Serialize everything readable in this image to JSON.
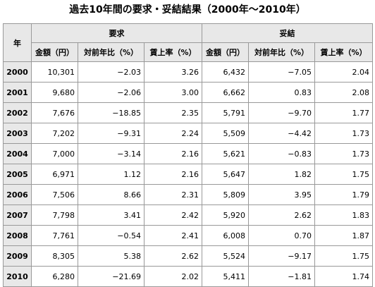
{
  "title": "過去10年間の要求・妥結結果（2000年～2010年）",
  "table": {
    "year_header": "年",
    "groups": [
      "要求",
      "妥結"
    ],
    "columns": [
      "金額（円）",
      "対前年比（%）",
      "賃上率（%）",
      "金額（円）",
      "対前年比（%）",
      "賃上率（%）"
    ],
    "rows": [
      {
        "year": "2000",
        "cells": [
          "10,301",
          "−2.03",
          "3.26",
          "6,432",
          "−7.05",
          "2.04"
        ]
      },
      {
        "year": "2001",
        "cells": [
          "9,680",
          "−2.06",
          "3.00",
          "6,662",
          "0.83",
          "2.08"
        ]
      },
      {
        "year": "2002",
        "cells": [
          "7,676",
          "−18.85",
          "2.35",
          "5,791",
          "−9.70",
          "1.77"
        ]
      },
      {
        "year": "2003",
        "cells": [
          "7,202",
          "−9.31",
          "2.24",
          "5,509",
          "−4.42",
          "1.73"
        ]
      },
      {
        "year": "2004",
        "cells": [
          "7,000",
          "−3.14",
          "2.16",
          "5,621",
          "−0.83",
          "1.73"
        ]
      },
      {
        "year": "2005",
        "cells": [
          "6,971",
          "1.12",
          "2.16",
          "5,647",
          "1.82",
          "1.75"
        ]
      },
      {
        "year": "2006",
        "cells": [
          "7,506",
          "8.66",
          "2.31",
          "5,809",
          "3.95",
          "1.79"
        ]
      },
      {
        "year": "2007",
        "cells": [
          "7,798",
          "3.41",
          "2.42",
          "5,920",
          "2.62",
          "1.83"
        ]
      },
      {
        "year": "2008",
        "cells": [
          "7,761",
          "−0.54",
          "2.41",
          "6,008",
          "0.70",
          "1.87"
        ]
      },
      {
        "year": "2009",
        "cells": [
          "8,305",
          "5.38",
          "2.62",
          "5,524",
          "−9.17",
          "1.75"
        ]
      },
      {
        "year": "2010",
        "cells": [
          "6,280",
          "−21.69",
          "2.02",
          "5,411",
          "−1.81",
          "1.74"
        ]
      }
    ]
  }
}
